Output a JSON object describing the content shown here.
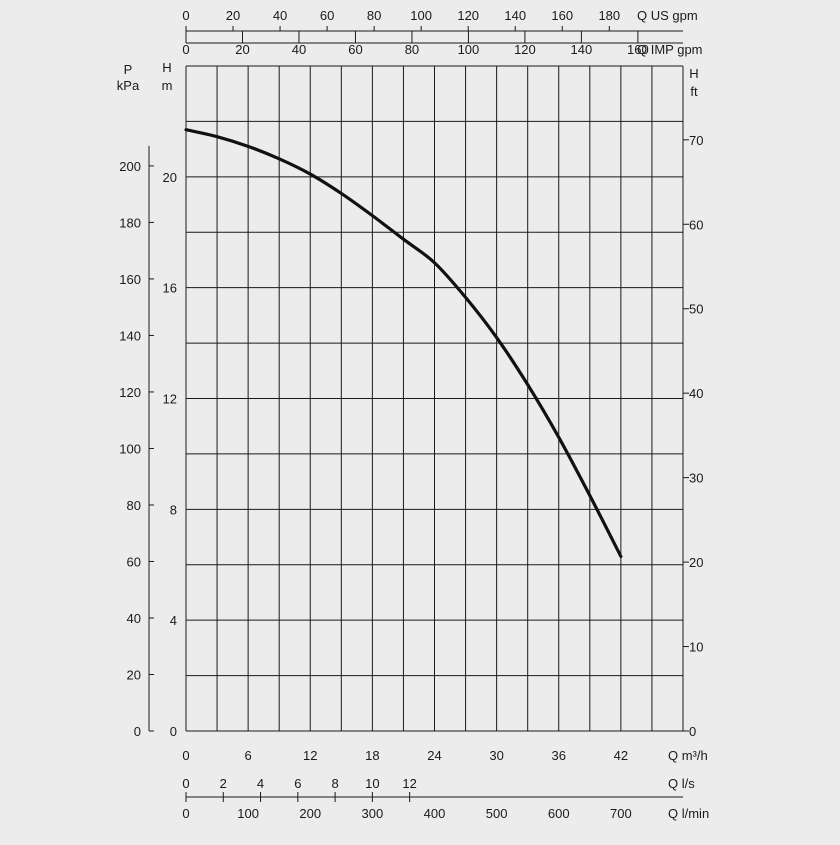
{
  "chart_data": {
    "type": "line",
    "title": "",
    "series": [
      {
        "name": "",
        "x": [
          0,
          3,
          6,
          9,
          12,
          15,
          18,
          21,
          24,
          27,
          30,
          33,
          36,
          39,
          42
        ],
        "y": [
          21.7,
          21.45,
          21.1,
          20.65,
          20.1,
          19.4,
          18.6,
          17.75,
          16.9,
          15.65,
          14.2,
          12.5,
          10.6,
          8.5,
          6.3
        ]
      }
    ],
    "xlim": [
      0,
      48
    ],
    "ylim": [
      0,
      24
    ],
    "grid": true,
    "axes": {
      "bottom_primary": {
        "unit": "Q m³/h",
        "ticks": [
          0,
          6,
          12,
          18,
          24,
          30,
          36,
          42
        ]
      },
      "bottom_ls": {
        "unit": "Q l/s",
        "ticks": [
          0,
          2,
          4,
          6,
          8,
          10,
          12
        ],
        "factor": 1.8
      },
      "bottom_lmin": {
        "unit": "Q l/min",
        "ticks": [
          0,
          100,
          200,
          300,
          400,
          500,
          600,
          700
        ],
        "factor": 0.06
      },
      "top_us_gpm": {
        "unit": "Q US gpm",
        "ticks": [
          0,
          20,
          40,
          60,
          80,
          100,
          120,
          140,
          160,
          180
        ],
        "factor": 0.22712
      },
      "top_imp_gpm": {
        "unit": "Q IMP gpm",
        "ticks": [
          0,
          20,
          40,
          60,
          80,
          100,
          120,
          140,
          160
        ],
        "factor": 0.27277
      },
      "left_m": {
        "title": "H",
        "unit": "m",
        "ticks": [
          0,
          4,
          8,
          12,
          16,
          20
        ]
      },
      "left_kpa": {
        "title": "P",
        "unit": "kPa",
        "ticks": [
          0,
          20,
          40,
          60,
          80,
          100,
          120,
          140,
          160,
          180,
          200
        ],
        "factor": 0.10197
      },
      "right_ft": {
        "title": "H",
        "unit": "ft",
        "ticks": [
          0,
          10,
          20,
          30,
          40,
          50,
          60,
          70
        ],
        "factor": 0.3048
      }
    }
  }
}
